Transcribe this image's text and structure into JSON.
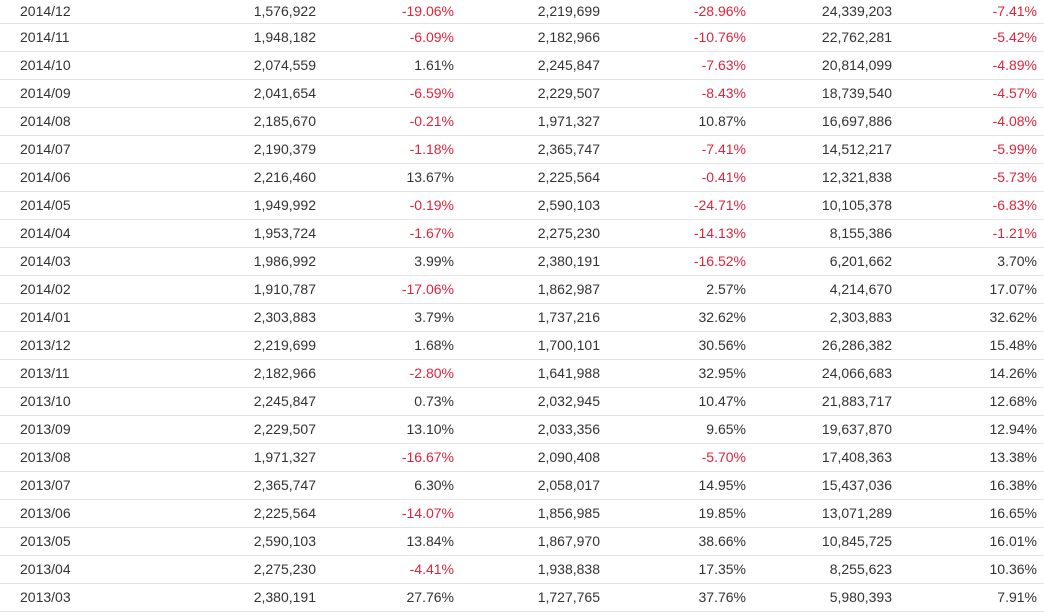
{
  "colors": {
    "negative": "#e0243a",
    "text": "#333333"
  },
  "rows": [
    [
      "2014/12",
      "1,576,922",
      "-19.06%",
      "2,219,699",
      "-28.96%",
      "24,339,203",
      "-7.41%"
    ],
    [
      "2014/11",
      "1,948,182",
      "-6.09%",
      "2,182,966",
      "-10.76%",
      "22,762,281",
      "-5.42%"
    ],
    [
      "2014/10",
      "2,074,559",
      "1.61%",
      "2,245,847",
      "-7.63%",
      "20,814,099",
      "-4.89%"
    ],
    [
      "2014/09",
      "2,041,654",
      "-6.59%",
      "2,229,507",
      "-8.43%",
      "18,739,540",
      "-4.57%"
    ],
    [
      "2014/08",
      "2,185,670",
      "-0.21%",
      "1,971,327",
      "10.87%",
      "16,697,886",
      "-4.08%"
    ],
    [
      "2014/07",
      "2,190,379",
      "-1.18%",
      "2,365,747",
      "-7.41%",
      "14,512,217",
      "-5.99%"
    ],
    [
      "2014/06",
      "2,216,460",
      "13.67%",
      "2,225,564",
      "-0.41%",
      "12,321,838",
      "-5.73%"
    ],
    [
      "2014/05",
      "1,949,992",
      "-0.19%",
      "2,590,103",
      "-24.71%",
      "10,105,378",
      "-6.83%"
    ],
    [
      "2014/04",
      "1,953,724",
      "-1.67%",
      "2,275,230",
      "-14.13%",
      "8,155,386",
      "-1.21%"
    ],
    [
      "2014/03",
      "1,986,992",
      "3.99%",
      "2,380,191",
      "-16.52%",
      "6,201,662",
      "3.70%"
    ],
    [
      "2014/02",
      "1,910,787",
      "-17.06%",
      "1,862,987",
      "2.57%",
      "4,214,670",
      "17.07%"
    ],
    [
      "2014/01",
      "2,303,883",
      "3.79%",
      "1,737,216",
      "32.62%",
      "2,303,883",
      "32.62%"
    ],
    [
      "2013/12",
      "2,219,699",
      "1.68%",
      "1,700,101",
      "30.56%",
      "26,286,382",
      "15.48%"
    ],
    [
      "2013/11",
      "2,182,966",
      "-2.80%",
      "1,641,988",
      "32.95%",
      "24,066,683",
      "14.26%"
    ],
    [
      "2013/10",
      "2,245,847",
      "0.73%",
      "2,032,945",
      "10.47%",
      "21,883,717",
      "12.68%"
    ],
    [
      "2013/09",
      "2,229,507",
      "13.10%",
      "2,033,356",
      "9.65%",
      "19,637,870",
      "12.94%"
    ],
    [
      "2013/08",
      "1,971,327",
      "-16.67%",
      "2,090,408",
      "-5.70%",
      "17,408,363",
      "13.38%"
    ],
    [
      "2013/07",
      "2,365,747",
      "6.30%",
      "2,058,017",
      "14.95%",
      "15,437,036",
      "16.38%"
    ],
    [
      "2013/06",
      "2,225,564",
      "-14.07%",
      "1,856,985",
      "19.85%",
      "13,071,289",
      "16.65%"
    ],
    [
      "2013/05",
      "2,590,103",
      "13.84%",
      "1,867,970",
      "38.66%",
      "10,845,725",
      "16.01%"
    ],
    [
      "2013/04",
      "2,275,230",
      "-4.41%",
      "1,938,838",
      "17.35%",
      "8,255,623",
      "10.36%"
    ],
    [
      "2013/03",
      "2,380,191",
      "27.76%",
      "1,727,765",
      "37.76%",
      "5,980,393",
      "7.91%"
    ]
  ]
}
